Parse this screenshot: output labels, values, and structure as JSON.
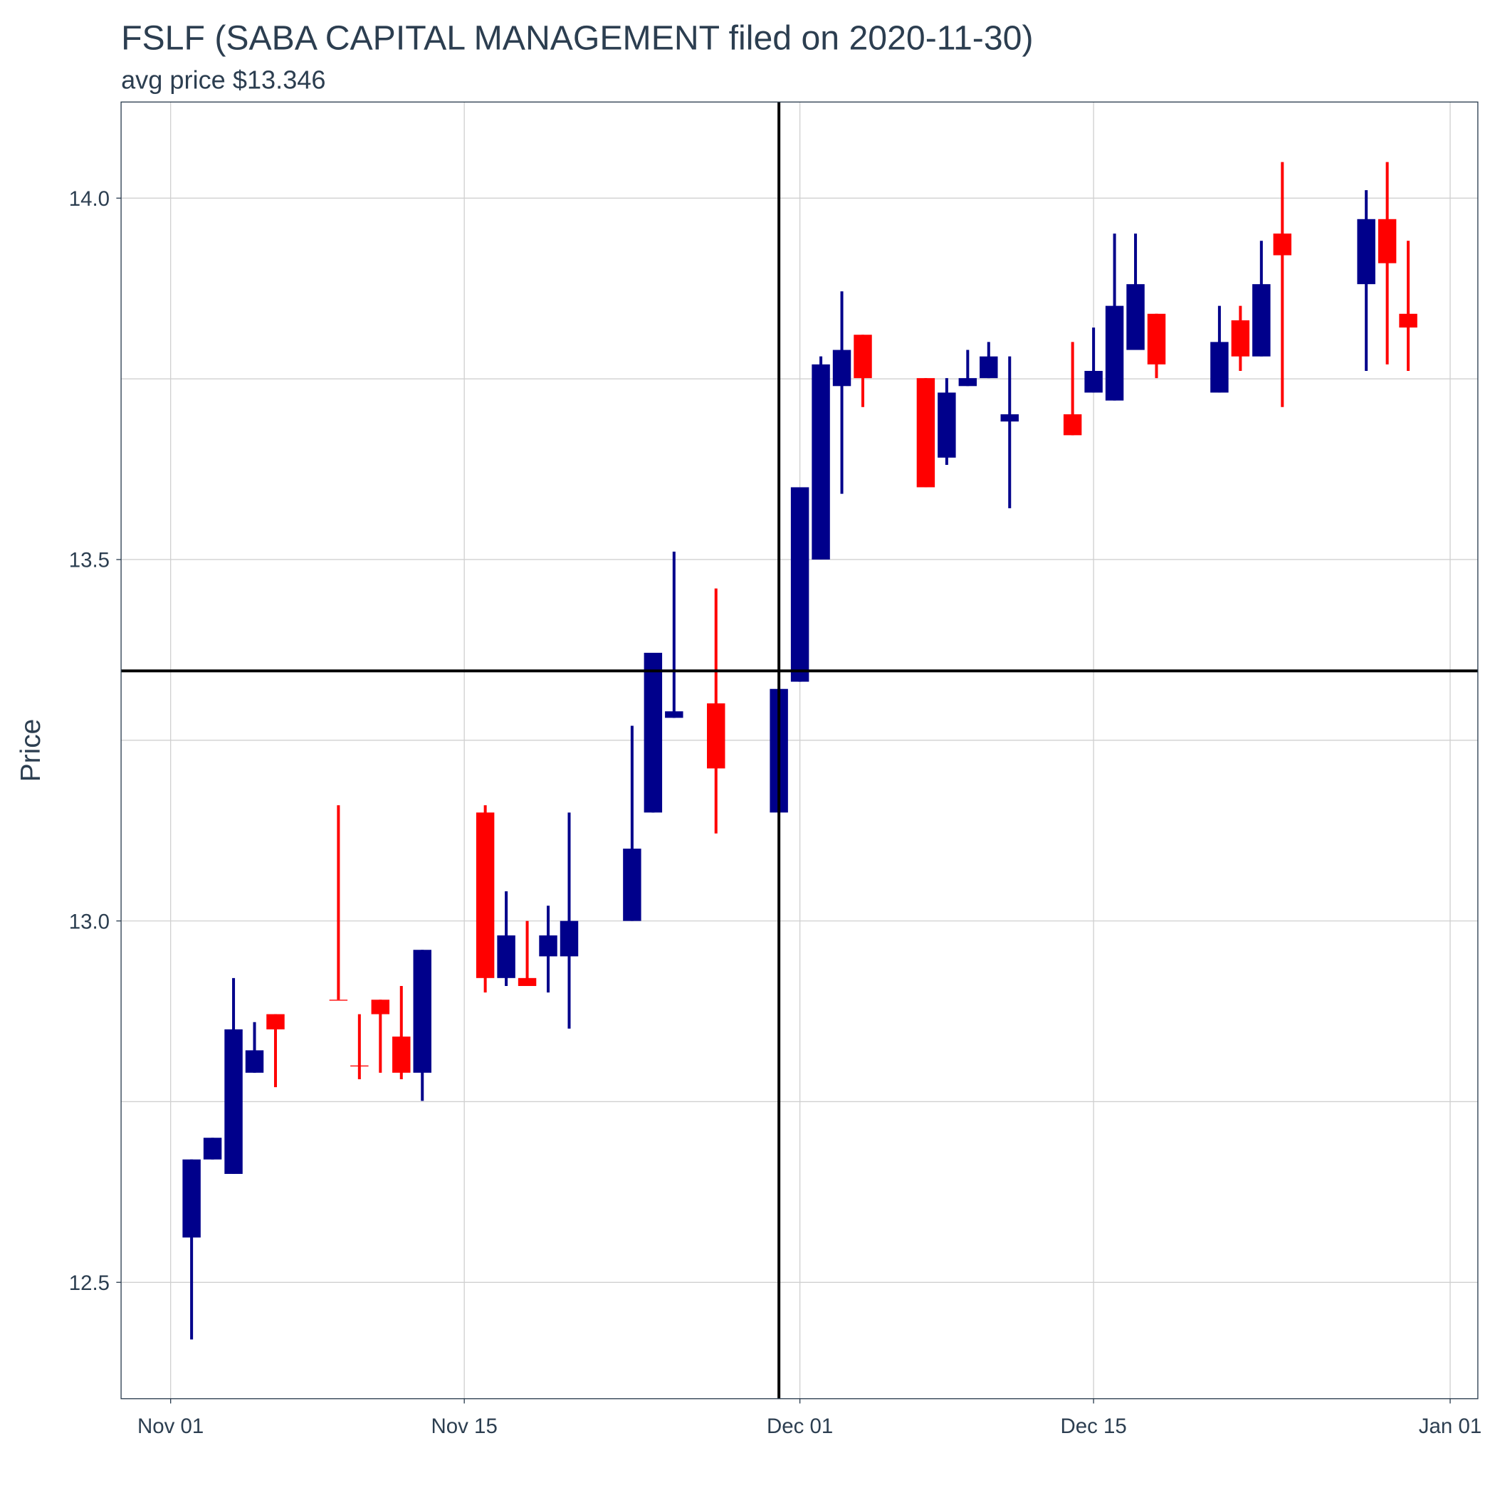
{
  "chart_data": {
    "type": "candlestick",
    "title": "FSLF (SABA CAPITAL MANAGEMENT filed on 2020-11-30)",
    "subtitle": "avg price $13.346",
    "y_label": "Price",
    "x": [
      "2020-11-02",
      "2020-11-03",
      "2020-11-04",
      "2020-11-05",
      "2020-11-06",
      "2020-11-09",
      "2020-11-10",
      "2020-11-11",
      "2020-11-12",
      "2020-11-13",
      "2020-11-16",
      "2020-11-17",
      "2020-11-18",
      "2020-11-19",
      "2020-11-20",
      "2020-11-23",
      "2020-11-24",
      "2020-11-25",
      "2020-11-27",
      "2020-11-30",
      "2020-12-01",
      "2020-12-02",
      "2020-12-03",
      "2020-12-04",
      "2020-12-07",
      "2020-12-08",
      "2020-12-09",
      "2020-12-10",
      "2020-12-11",
      "2020-12-14",
      "2020-12-15",
      "2020-12-16",
      "2020-12-17",
      "2020-12-18",
      "2020-12-21",
      "2020-12-22",
      "2020-12-23",
      "2020-12-24",
      "2020-12-28",
      "2020-12-29",
      "2020-12-30"
    ],
    "open": [
      12.562,
      12.67,
      12.65,
      12.79,
      12.871,
      12.891,
      12.8,
      12.891,
      12.84,
      12.79,
      13.15,
      12.921,
      12.921,
      12.951,
      12.951,
      13.0,
      13.15,
      13.281,
      13.301,
      13.15,
      13.331,
      13.5,
      13.74,
      13.811,
      13.751,
      13.641,
      13.74,
      13.751,
      13.691,
      13.701,
      13.731,
      13.72,
      13.79,
      13.84,
      13.731,
      13.831,
      13.781,
      13.951,
      13.881,
      13.971,
      13.84
    ],
    "high": [
      12.67,
      12.7,
      12.921,
      12.86,
      12.871,
      13.16,
      12.871,
      12.891,
      12.91,
      12.96,
      13.16,
      13.041,
      13.0,
      13.021,
      13.15,
      13.27,
      13.371,
      13.511,
      13.46,
      13.321,
      13.6,
      13.781,
      13.871,
      13.811,
      13.751,
      13.751,
      13.79,
      13.801,
      13.781,
      13.801,
      13.821,
      13.951,
      13.951,
      13.84,
      13.851,
      13.851,
      13.941,
      14.05,
      14.011,
      14.05,
      13.941
    ],
    "low": [
      12.421,
      12.67,
      12.65,
      12.79,
      12.77,
      12.891,
      12.781,
      12.79,
      12.781,
      12.751,
      12.901,
      12.91,
      12.91,
      12.901,
      12.851,
      13.0,
      13.15,
      13.281,
      13.121,
      13.15,
      13.331,
      13.5,
      13.591,
      13.711,
      13.6,
      13.631,
      13.74,
      13.751,
      13.571,
      13.672,
      13.731,
      13.72,
      13.79,
      13.751,
      13.731,
      13.761,
      13.781,
      13.711,
      13.761,
      13.77,
      13.761
    ],
    "close": [
      12.67,
      12.7,
      12.85,
      12.821,
      12.85,
      12.891,
      12.8,
      12.871,
      12.79,
      12.96,
      12.921,
      12.98,
      12.91,
      12.98,
      13.0,
      13.1,
      13.371,
      13.29,
      13.211,
      13.321,
      13.6,
      13.77,
      13.79,
      13.751,
      13.6,
      13.731,
      13.751,
      13.781,
      13.701,
      13.672,
      13.761,
      13.851,
      13.881,
      13.77,
      13.801,
      13.781,
      13.881,
      13.921,
      13.971,
      13.91,
      13.821
    ],
    "up_color": "#00008b",
    "down_color": "#ff0000",
    "hline": 13.346,
    "vline": "2020-11-30",
    "xlim": [
      "2020-10-29T15:20",
      "2021-01-02T07:40"
    ],
    "xticks": [
      {
        "value": "2020-11-01",
        "label": "Nov 01"
      },
      {
        "value": "2020-11-15",
        "label": "Nov 15"
      },
      {
        "value": "2020-12-01",
        "label": "Dec 01"
      },
      {
        "value": "2020-12-15",
        "label": "Dec 15"
      },
      {
        "value": "2021-01-01",
        "label": "Jan 01"
      }
    ],
    "ylim": [
      12.339,
      14.133
    ],
    "yticks": [
      {
        "value": 12.5,
        "label": "12.5"
      },
      {
        "value": 13,
        "label": "13.0"
      },
      {
        "value": 13.5,
        "label": "13.5"
      },
      {
        "value": 14,
        "label": "14.0"
      }
    ],
    "y_minor_ticks": [
      12.75,
      13.25,
      13.75
    ],
    "grid": true
  }
}
